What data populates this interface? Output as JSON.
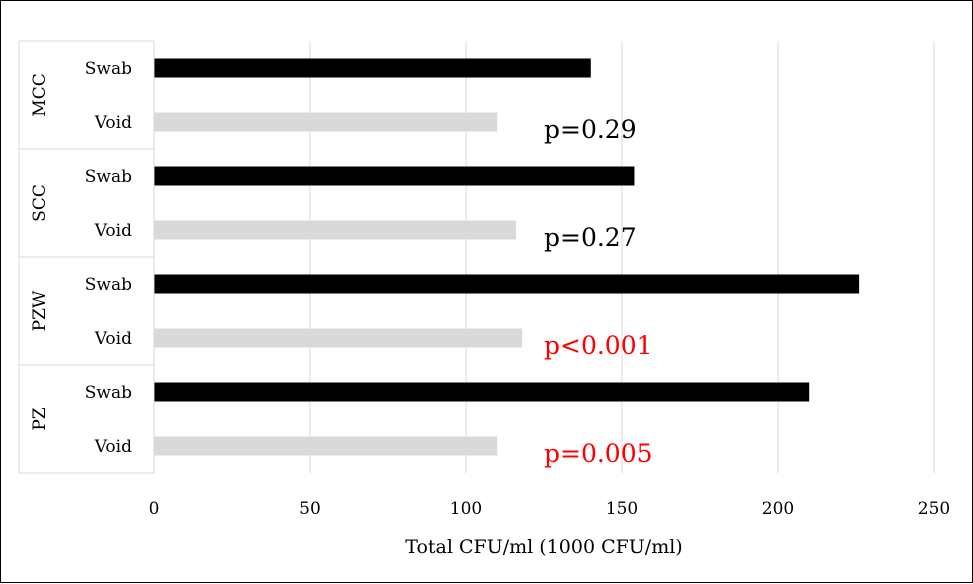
{
  "chart_data": {
    "type": "bar",
    "orientation": "horizontal",
    "xlabel": "Total CFU/ml (1000 CFU/ml)",
    "xlim": [
      0,
      250
    ],
    "xticks": [
      0,
      50,
      100,
      150,
      200,
      250
    ],
    "grid": true,
    "colors": {
      "Swab": "#000000",
      "Void": "#d9d9d9"
    },
    "groups": [
      {
        "name": "MCC",
        "bars": [
          {
            "label": "Swab",
            "value": 140
          },
          {
            "label": "Void",
            "value": 110
          }
        ],
        "annotation": "p=0.29",
        "annotation_color": "#000000"
      },
      {
        "name": "SCC",
        "bars": [
          {
            "label": "Swab",
            "value": 154
          },
          {
            "label": "Void",
            "value": 116
          }
        ],
        "annotation": "p=0.27",
        "annotation_color": "#000000"
      },
      {
        "name": "PZW",
        "bars": [
          {
            "label": "Swab",
            "value": 226
          },
          {
            "label": "Void",
            "value": 118
          }
        ],
        "annotation": "p<0.001",
        "annotation_color": "#ff0000"
      },
      {
        "name": "PZ",
        "bars": [
          {
            "label": "Swab",
            "value": 210
          },
          {
            "label": "Void",
            "value": 110
          }
        ],
        "annotation": "p=0.005",
        "annotation_color": "#ff0000"
      }
    ]
  }
}
